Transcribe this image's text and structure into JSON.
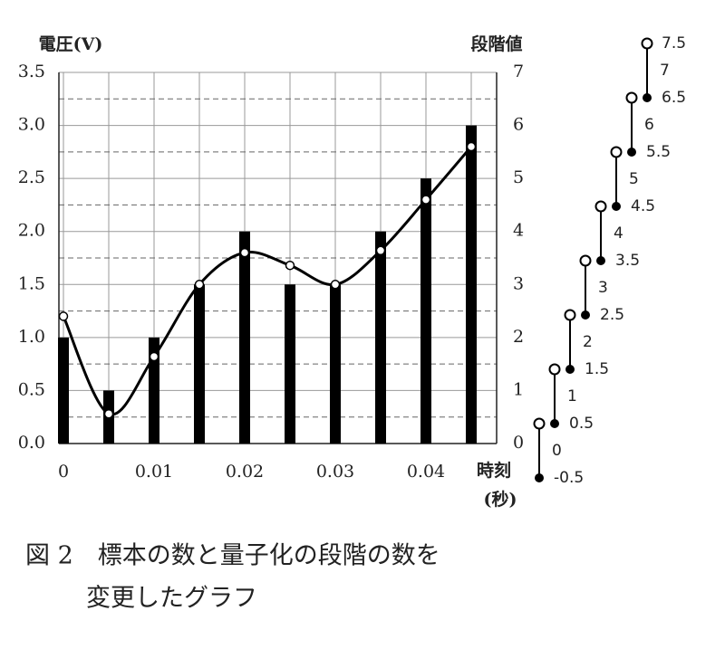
{
  "chart_data": {
    "type": "bar",
    "ylabel": "電圧(V)",
    "y2label": "段階値",
    "xlabel": [
      "時刻",
      "(秒)"
    ],
    "x": [
      0,
      0.005,
      0.01,
      0.015,
      0.02,
      0.025,
      0.03,
      0.035,
      0.04,
      0.045
    ],
    "xlim": [
      -0.0005,
      0.0478
    ],
    "xticks": [
      0,
      0.01,
      0.02,
      0.03,
      0.04
    ],
    "ylim": [
      0,
      3.5
    ],
    "yticks": [
      {
        "value": 0,
        "label": "0.0"
      },
      {
        "value": 0.5,
        "label": "0.5"
      },
      {
        "value": 1,
        "label": "1.0"
      },
      {
        "value": 1.5,
        "label": "1.5"
      },
      {
        "value": 2,
        "label": "2.0"
      },
      {
        "value": 2.5,
        "label": "2.5"
      },
      {
        "value": 3,
        "label": "3.0"
      },
      {
        "value": 3.5,
        "label": "3.5"
      }
    ],
    "y2lim": [
      0,
      7
    ],
    "y2ticks": [
      0,
      1,
      2,
      3,
      4,
      5,
      6,
      7
    ],
    "grid": true,
    "series": [
      {
        "type": "bar",
        "axis": "y2",
        "color": "#000000",
        "values": [
          2,
          1,
          2,
          3,
          4,
          3,
          3,
          4,
          5,
          6
        ]
      },
      {
        "type": "line",
        "color": "#000000",
        "values": [
          1.2,
          0.28,
          0.82,
          1.5,
          1.8,
          1.68,
          1.5,
          1.82,
          2.3,
          2.8
        ]
      }
    ]
  },
  "caption": [
    "図 2　標本の数と量子化の段階の数を",
    "変更したグラフ"
  ],
  "diagram": {
    "levels": [
      0,
      1,
      2,
      3,
      4,
      5,
      6,
      7
    ],
    "boundaries": [
      -0.5,
      0.5,
      1.5,
      2.5,
      3.5,
      4.5,
      5.5,
      6.5,
      7.5
    ],
    "level_color": "#e8281e",
    "boundary_color": "#8a8a8a"
  }
}
